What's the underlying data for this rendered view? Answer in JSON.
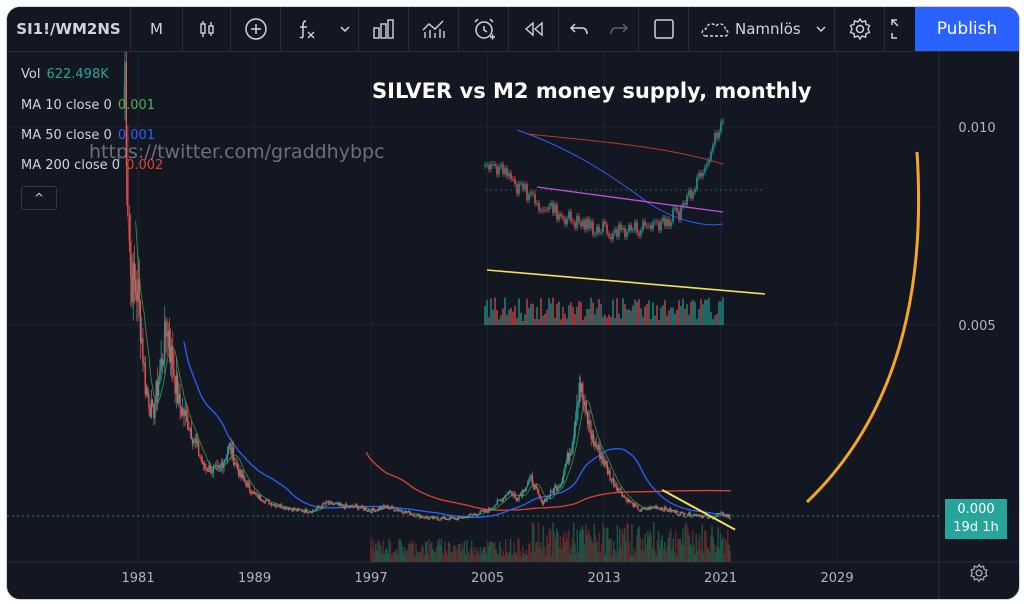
{
  "toolbar": {
    "symbol": "SI1!/WM2NS",
    "interval": "M",
    "layout_name": "Namnlös",
    "publish_label": "Publish",
    "icons": [
      "candles-icon",
      "add-compare-icon",
      "indicators-icon",
      "chevron-down-icon",
      "bar-chart-icon",
      "templates-icon",
      "alert-icon",
      "replay-icon",
      "undo-icon",
      "redo-icon",
      "rectangle-icon",
      "cloud-icon",
      "chevron-down-icon",
      "gear-icon",
      "fullscreen-icon"
    ]
  },
  "legend": {
    "vol_label": "Vol",
    "vol_value": "622.498K",
    "ma10_label": "MA 10 close 0",
    "ma10_value": "0.001",
    "ma50_label": "MA 50 close 0",
    "ma50_value": "0.001",
    "ma200_label": "MA 200 close 0",
    "ma200_value": "0.002",
    "collapse_symbol": "^"
  },
  "watermark": "https://twitter.com/graddhybpc",
  "price_tag": {
    "value": "0.000",
    "countdown": "19d 1h"
  },
  "colors": {
    "background": "#131722",
    "up": "#26a69a",
    "down": "#ef5350",
    "ma10": "#4caf50",
    "ma50": "#2962ff",
    "ma200": "#e0442a",
    "trendline": "#f5e05a",
    "arc": "#f5a623",
    "inset_channel": "#c34fd6"
  },
  "chart_data": {
    "type": "line",
    "title": "SILVER vs M2 money supply, monthly",
    "x_ticks": [
      "1981",
      "1989",
      "1997",
      "2005",
      "2013",
      "2021",
      "2029"
    ],
    "y_ticks": [
      "0.010",
      "0.005"
    ],
    "ylim": [
      -0.001,
      0.0119
    ],
    "xlim": [
      1972.0,
      2036.0
    ],
    "grid": true,
    "series": [
      {
        "x": [
          1980.0,
          1980.1,
          1980.3,
          1980.5,
          1981.0,
          1981.5,
          1982.0,
          1982.5,
          1983.0,
          1983.3,
          1983.8,
          1984.5,
          1985.5,
          1986.5,
          1987.3,
          1988.0,
          1989.0,
          1990.0,
          1991.0,
          1992.0,
          1993.0,
          1994.0,
          1995.0,
          1996.0,
          1997.0,
          1998.0,
          1999.0,
          2000.0,
          2001.0,
          2002.0,
          2003.0,
          2004.0,
          2005.0,
          2006.0,
          2006.5,
          2007.0,
          2008.0,
          2008.7,
          2009.0,
          2010.0,
          2010.8,
          2011.3,
          2011.7,
          2012.2,
          2012.8,
          2013.5,
          2014.5,
          2015.5,
          2016.5,
          2017.5,
          2018.5,
          2019.5,
          2020.3,
          2020.7,
          2021.2,
          2021.7
        ],
        "values": [
          0.0105,
          0.0115,
          0.0082,
          0.0062,
          0.0058,
          0.0035,
          0.0027,
          0.0038,
          0.005,
          0.0042,
          0.003,
          0.0025,
          0.0014,
          0.0013,
          0.0019,
          0.0012,
          0.0007,
          0.0005,
          0.0004,
          0.0003,
          0.0003,
          0.0005,
          0.0004,
          0.0004,
          0.0003,
          0.0004,
          0.0003,
          0.0002,
          0.0001,
          0.0001,
          0.0001,
          0.0002,
          0.0003,
          0.0006,
          0.0008,
          0.0006,
          0.0011,
          0.0005,
          0.0006,
          0.001,
          0.002,
          0.0036,
          0.0028,
          0.0021,
          0.0017,
          0.0011,
          0.0006,
          0.0003,
          0.0004,
          0.0003,
          0.0002,
          0.0002,
          0.0001,
          0.0002,
          0.0002,
          0.0001
        ]
      }
    ]
  }
}
